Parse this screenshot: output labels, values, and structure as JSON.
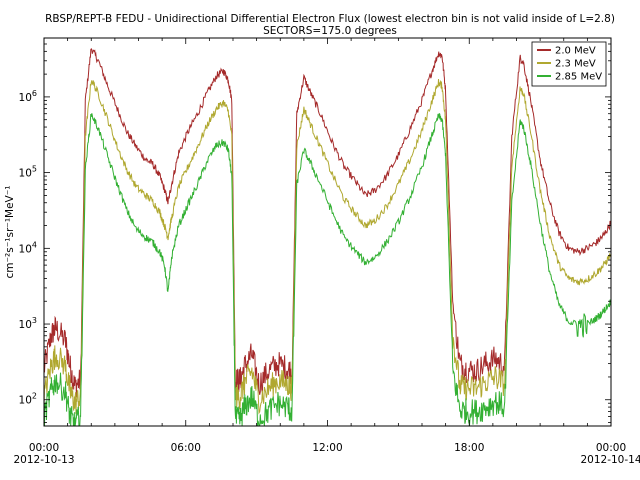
{
  "chart_data": {
    "type": "line",
    "title": "RBSP/REPT-B  FEDU - Unidirectional Differential Electron Flux (lowest electron bin is not valid inside of L=2.8)",
    "subtitle": "SECTORS=175.0 degrees",
    "ylabel": "cm⁻²s⁻¹sr⁻¹MeV⁻¹",
    "xlabel": "",
    "y_scale": "log",
    "ylim": [
      45,
      6000000
    ],
    "xlim": [
      "2012-10-13T00:00",
      "2012-10-14T00:00"
    ],
    "grid": false,
    "legend_position": "top-right",
    "y_ticks": [
      {
        "base": "10",
        "exp": "2",
        "value": 100
      },
      {
        "base": "10",
        "exp": "3",
        "value": 1000
      },
      {
        "base": "10",
        "exp": "4",
        "value": 10000
      },
      {
        "base": "10",
        "exp": "5",
        "value": 100000
      },
      {
        "base": "10",
        "exp": "6",
        "value": 1000000
      }
    ],
    "x_ticks": [
      {
        "label": "00:00",
        "sublabel": "2012-10-13",
        "hour": 0
      },
      {
        "label": "06:00",
        "sublabel": "",
        "hour": 6
      },
      {
        "label": "12:00",
        "sublabel": "",
        "hour": 12
      },
      {
        "label": "18:00",
        "sublabel": "",
        "hour": 18
      },
      {
        "label": "00:00",
        "sublabel": "2012-10-14",
        "hour": 24
      }
    ],
    "x_hours": [
      0.0,
      0.3,
      0.5,
      0.9,
      1.1,
      1.3,
      1.55,
      1.75,
      2.0,
      2.3,
      2.7,
      3.1,
      3.5,
      3.9,
      4.3,
      4.6,
      4.9,
      5.1,
      5.25,
      5.4,
      5.7,
      6.1,
      6.5,
      6.9,
      7.3,
      7.6,
      7.8,
      7.95,
      8.1,
      8.3,
      8.5,
      8.8,
      9.1,
      9.5,
      9.9,
      10.3,
      10.5,
      10.7,
      11.0,
      11.3,
      11.7,
      12.2,
      12.7,
      13.2,
      13.6,
      14.0,
      14.5,
      15.0,
      15.5,
      16.0,
      16.4,
      16.7,
      16.85,
      17.0,
      17.3,
      17.6,
      17.9,
      18.3,
      18.7,
      19.1,
      19.5,
      19.8,
      20.15,
      20.3,
      20.6,
      21.0,
      21.4,
      21.8,
      22.2,
      22.6,
      23.0,
      23.4,
      23.7,
      24.0
    ],
    "series": [
      {
        "name": "2.0 MeV",
        "color": "#a52a2a",
        "values": [
          250,
          700,
          900,
          600,
          280,
          150,
          180,
          900000,
          4400000,
          3000000,
          1400000,
          700000,
          350000,
          220000,
          150000,
          130000,
          90000,
          60000,
          40000,
          70000,
          180000,
          350000,
          600000,
          1100000,
          1900000,
          2200000,
          1700000,
          900000,
          180,
          180,
          280,
          400,
          160,
          240,
          300,
          260,
          230,
          600000,
          1800000,
          1100000,
          600000,
          250000,
          120000,
          75000,
          50000,
          58000,
          90000,
          170000,
          380000,
          900000,
          2100000,
          3800000,
          3500000,
          1200000,
          2000,
          300,
          250,
          240,
          300,
          350,
          280,
          300000,
          3300000,
          2800000,
          900000,
          150000,
          40000,
          16000,
          10000,
          9000,
          10000,
          12000,
          15000,
          22000
        ]
      },
      {
        "name": "2.3 MeV",
        "color": "#b0a830",
        "values": [
          110,
          280,
          400,
          280,
          130,
          90,
          110,
          300000,
          1700000,
          1100000,
          500000,
          220000,
          110000,
          65000,
          50000,
          42000,
          30000,
          20000,
          14000,
          25000,
          65000,
          120000,
          220000,
          420000,
          700000,
          850000,
          650000,
          300000,
          110,
          110,
          170,
          240,
          100,
          140,
          180,
          160,
          140,
          220000,
          700000,
          420000,
          220000,
          95000,
          45000,
          28000,
          20000,
          23000,
          36000,
          70000,
          150000,
          360000,
          850000,
          1550000,
          1400000,
          480000,
          700,
          150,
          140,
          140,
          170,
          200,
          160,
          120000,
          1300000,
          1100000,
          350000,
          60000,
          15000,
          6000,
          4000,
          3600,
          3900,
          4800,
          6000,
          8500
        ]
      },
      {
        "name": "2.85 MeV",
        "color": "#33b033",
        "values": [
          60,
          130,
          180,
          130,
          60,
          48,
          60,
          110000,
          600000,
          380000,
          160000,
          70000,
          32000,
          18000,
          14000,
          12000,
          9000,
          6000,
          2600,
          7500,
          20000,
          38000,
          70000,
          140000,
          230000,
          250000,
          200000,
          90000,
          55,
          55,
          80,
          110,
          55,
          70,
          90,
          80,
          70,
          70000,
          200000,
          130000,
          70000,
          30000,
          14000,
          9000,
          6500,
          7500,
          12000,
          22000,
          48000,
          120000,
          300000,
          560000,
          500000,
          170000,
          250,
          75,
          70,
          70,
          80,
          95,
          80,
          40000,
          480000,
          400000,
          130000,
          22000,
          5000,
          1800,
          1100,
          950,
          1000,
          1200,
          1500,
          2000
        ]
      }
    ]
  }
}
